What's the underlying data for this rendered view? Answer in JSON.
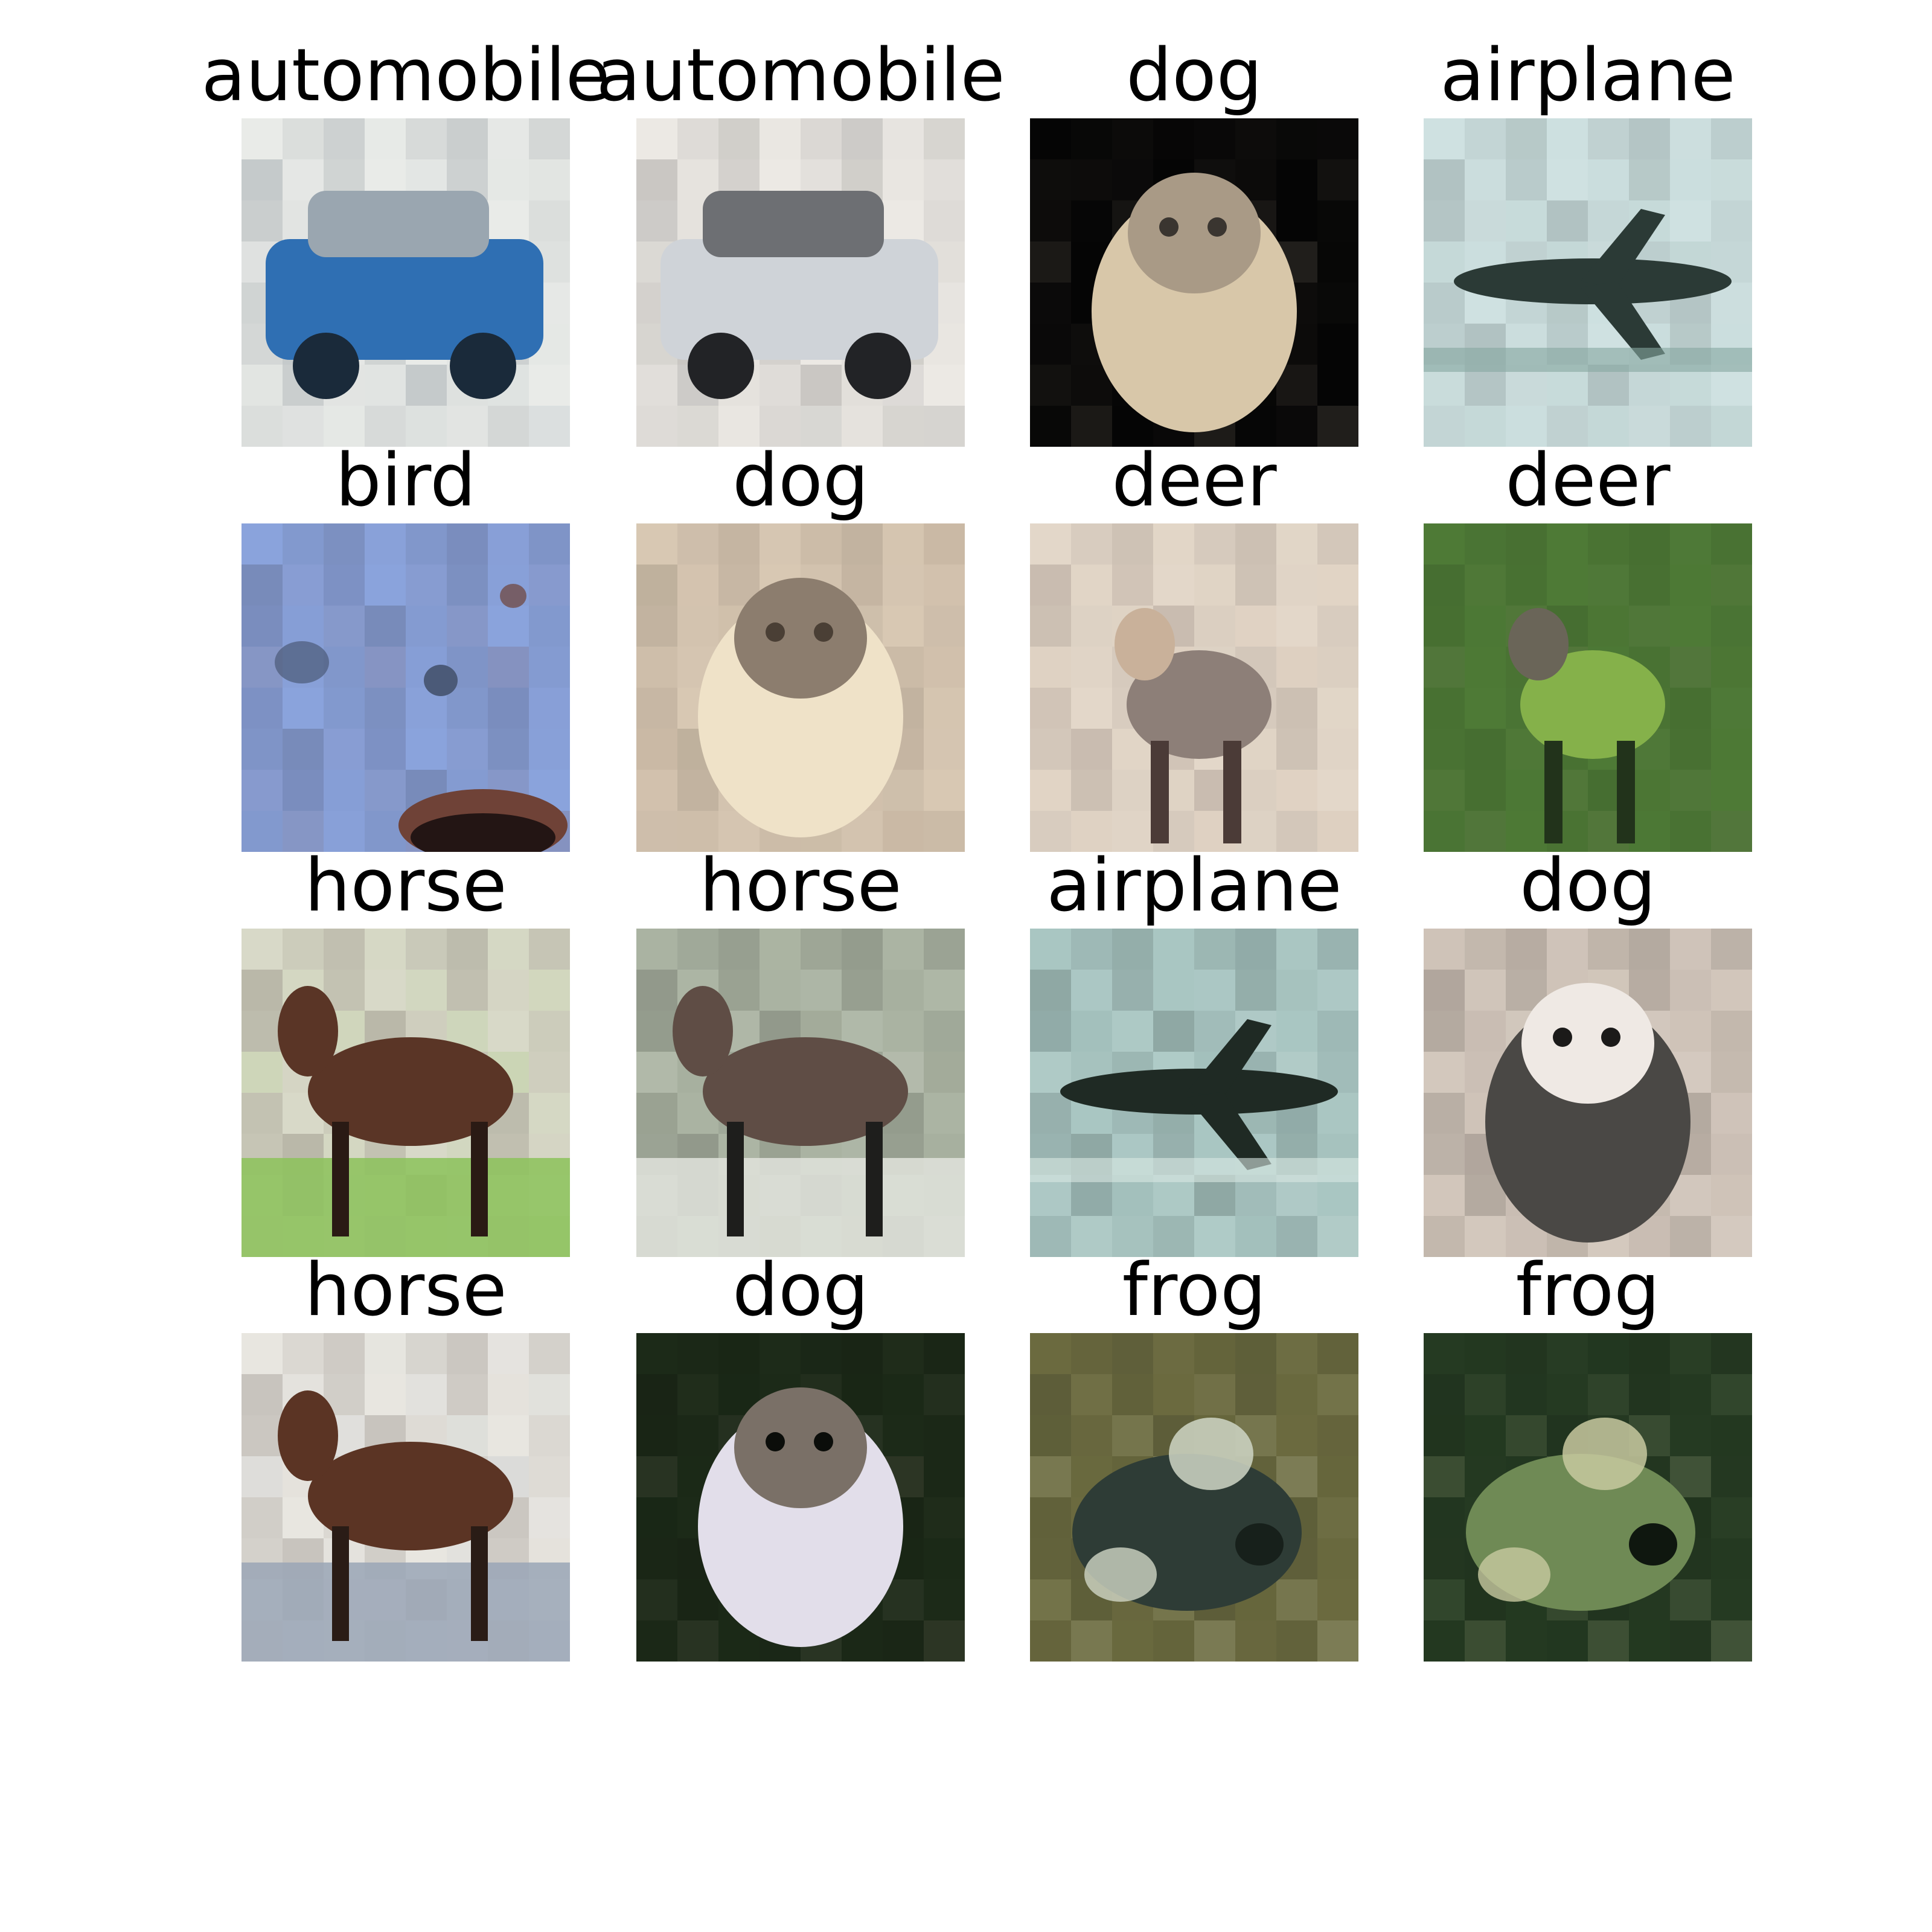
{
  "figure": {
    "rows": 4,
    "cols": 4,
    "cells": [
      {
        "label": "automobile",
        "subject": "car",
        "colors": {
          "bg": "#e9ebe8",
          "main": "#2f6fb3",
          "accent": "#9aa6b0",
          "dark": "#1a2a3a"
        }
      },
      {
        "label": "automobile",
        "subject": "car",
        "colors": {
          "bg": "#ece9e4",
          "main": "#cfd3d8",
          "accent": "#6d6f73",
          "dark": "#222326"
        }
      },
      {
        "label": "dog",
        "subject": "dog",
        "colors": {
          "bg": "#050505",
          "main": "#d8c7a9",
          "accent": "#a99a86",
          "dark": "#3a3530"
        }
      },
      {
        "label": "airplane",
        "subject": "airplane",
        "colors": {
          "bg": "#cfe1e1",
          "main": "#2b3a36",
          "accent": "#86a6a0",
          "dark": "#1d2a28"
        }
      },
      {
        "label": "bird",
        "subject": "bird",
        "colors": {
          "bg": "#8aa3dc",
          "main": "#4b5a78",
          "accent": "#6f4237",
          "dark": "#231514"
        }
      },
      {
        "label": "dog",
        "subject": "dog",
        "colors": {
          "bg": "#d8c8b3",
          "main": "#efe2c8",
          "accent": "#8c7d6e",
          "dark": "#4a3f35"
        }
      },
      {
        "label": "deer",
        "subject": "deer",
        "colors": {
          "bg": "#e3d7c9",
          "main": "#8d7f78",
          "accent": "#c9b19a",
          "dark": "#4b3b37"
        }
      },
      {
        "label": "deer",
        "subject": "deer",
        "colors": {
          "bg": "#4e7a36",
          "main": "#85b14a",
          "accent": "#6a6558",
          "dark": "#22331b"
        }
      },
      {
        "label": "horse",
        "subject": "horse",
        "colors": {
          "bg": "#d8d9c8",
          "main": "#5a3526",
          "accent": "#8cc25b",
          "dark": "#2a1a14"
        }
      },
      {
        "label": "horse",
        "subject": "horse",
        "colors": {
          "bg": "#aab3a2",
          "main": "#5f4d45",
          "accent": "#e0e3dc",
          "dark": "#1e1e1c"
        }
      },
      {
        "label": "airplane",
        "subject": "airplane",
        "colors": {
          "bg": "#a9c6c2",
          "main": "#1f2a24",
          "accent": "#d9e8e2",
          "dark": "#0f1512"
        }
      },
      {
        "label": "dog",
        "subject": "dog",
        "colors": {
          "bg": "#cfc3b8",
          "main": "#4a4845",
          "accent": "#efe9e4",
          "dark": "#1b1a19"
        }
      },
      {
        "label": "horse",
        "subject": "horse",
        "colors": {
          "bg": "#e8e6e0",
          "main": "#5b3424",
          "accent": "#9aa6b6",
          "dark": "#2a1c16"
        }
      },
      {
        "label": "dog",
        "subject": "dog",
        "colors": {
          "bg": "#1c2a18",
          "main": "#e2deea",
          "accent": "#7a7067",
          "dark": "#0b0d0a"
        }
      },
      {
        "label": "frog",
        "subject": "frog",
        "colors": {
          "bg": "#6b6a3f",
          "main": "#2e3c36",
          "accent": "#cfd6c6",
          "dark": "#17201b"
        }
      },
      {
        "label": "frog",
        "subject": "frog",
        "colors": {
          "bg": "#253a22",
          "main": "#6f8a55",
          "accent": "#c8c9a0",
          "dark": "#0f170f"
        }
      }
    ]
  }
}
